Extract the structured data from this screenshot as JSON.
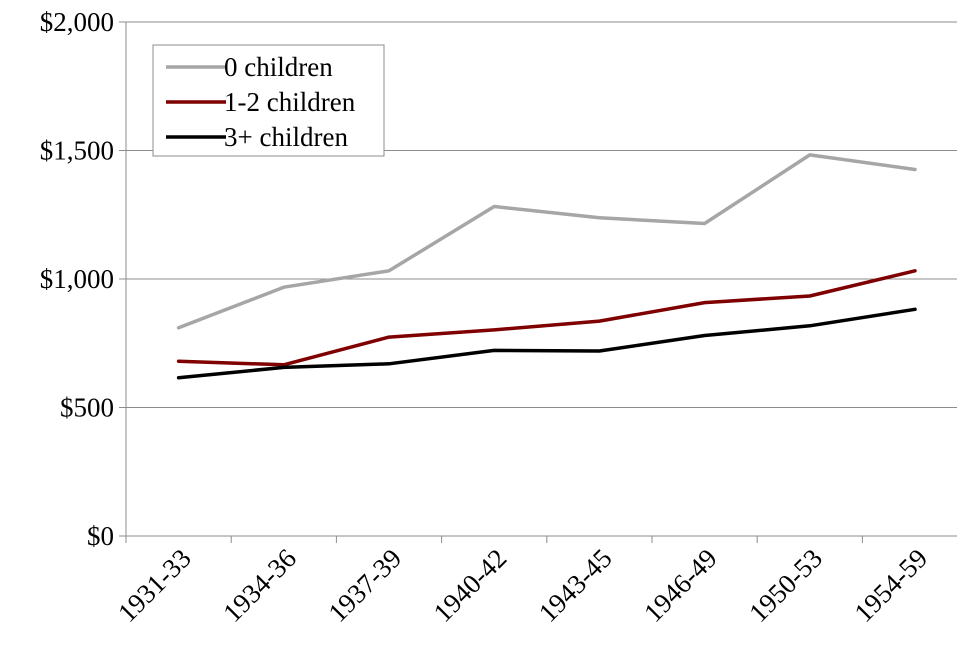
{
  "chart_data": {
    "type": "line",
    "title": "",
    "xlabel": "",
    "ylabel": "",
    "categories": [
      "1931-33",
      "1934-36",
      "1937-39",
      "1940-42",
      "1943-45",
      "1946-49",
      "1950-53",
      "1954-59"
    ],
    "ylim": [
      0,
      2000
    ],
    "yticks": [
      0,
      500,
      1000,
      1500,
      2000
    ],
    "ytick_labels": [
      "$0",
      "$500",
      "$1,000",
      "$1,500",
      "$2,000"
    ],
    "grid": "horizontal",
    "legend_position": "top-left",
    "series": [
      {
        "name": "0 children",
        "color": "#a6a6a6",
        "values": [
          810,
          968,
          1032,
          1282,
          1238,
          1216,
          1483,
          1426
        ]
      },
      {
        "name": "1-2 children",
        "color": "#7f0000",
        "values": [
          680,
          666,
          774,
          802,
          836,
          908,
          934,
          1032
        ]
      },
      {
        "name": "3+ children",
        "color": "#000000",
        "values": [
          616,
          656,
          670,
          722,
          720,
          780,
          818,
          882
        ]
      }
    ]
  }
}
